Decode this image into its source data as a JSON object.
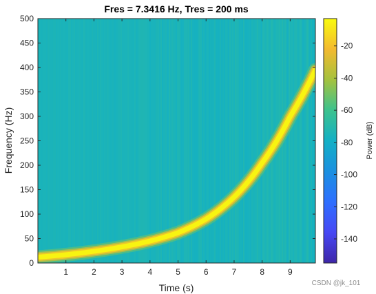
{
  "chart_data": {
    "type": "heatmap",
    "title": "Fres = 7.3416 Hz, Tres = 200 ms",
    "xlabel": "Time (s)",
    "ylabel": "Frequency (Hz)",
    "xlim": [
      0,
      9.9
    ],
    "ylim": [
      0,
      500
    ],
    "xticks": [
      1,
      2,
      3,
      4,
      5,
      6,
      7,
      8,
      9
    ],
    "yticks": [
      0,
      50,
      100,
      150,
      200,
      250,
      300,
      350,
      400,
      450,
      500
    ],
    "colorbar": {
      "label": "Power (dB)",
      "range": [
        -155,
        -3
      ],
      "ticks": [
        -20,
        -40,
        -60,
        -80,
        -100,
        -120,
        -140
      ],
      "colormap": "parula"
    },
    "background_power_db": -75,
    "ridge": {
      "peak_power_db": -5,
      "points": [
        {
          "t": 0.0,
          "f": 12
        },
        {
          "t": 1.0,
          "f": 17
        },
        {
          "t": 2.0,
          "f": 24
        },
        {
          "t": 3.0,
          "f": 33
        },
        {
          "t": 4.0,
          "f": 45
        },
        {
          "t": 5.0,
          "f": 62
        },
        {
          "t": 6.0,
          "f": 90
        },
        {
          "t": 7.0,
          "f": 135
        },
        {
          "t": 8.0,
          "f": 205
        },
        {
          "t": 9.0,
          "f": 300
        },
        {
          "t": 9.9,
          "f": 395
        }
      ]
    },
    "grid": false
  },
  "watermark": "CSDN @jk_101"
}
